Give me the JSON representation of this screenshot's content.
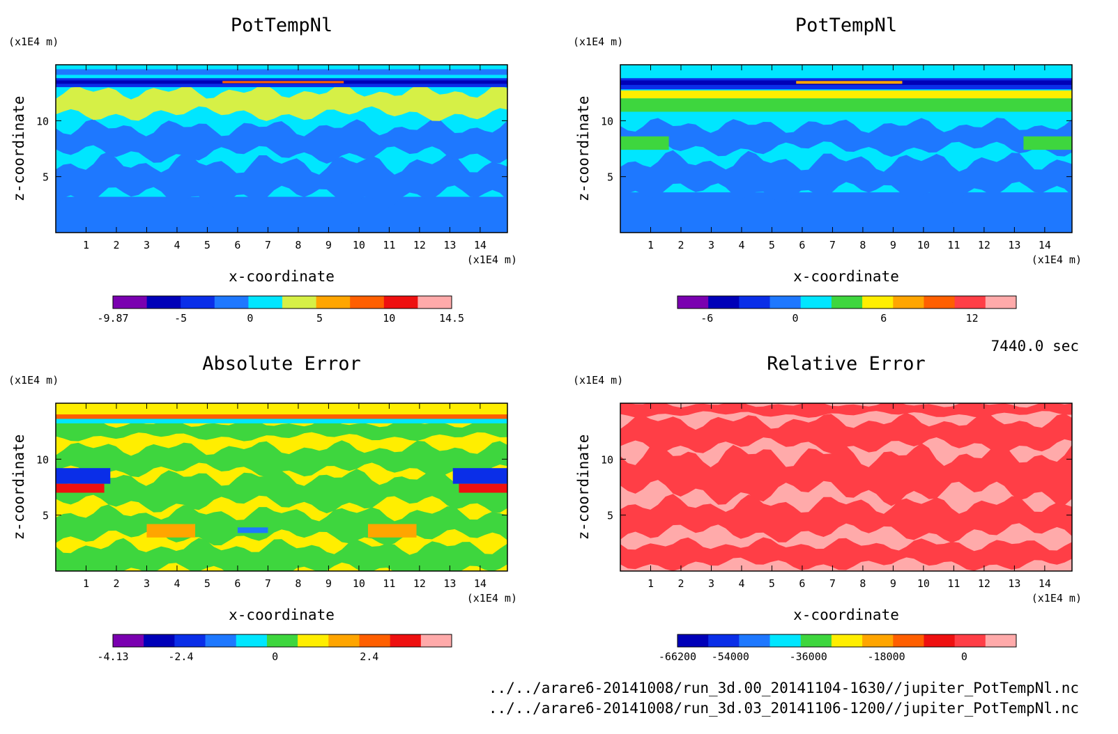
{
  "time_label": "7440.0 sec",
  "files": [
    "../../arare6-20141008/run_3d.00_20141104-1630//jupiter_PotTempNl.nc",
    "../../arare6-20141008/run_3d.03_20141106-1200//jupiter_PotTempNl.nc"
  ],
  "palette": [
    "#7a00b0",
    "#0000b8",
    "#0a2ee8",
    "#1e78ff",
    "#00e6ff",
    "#3ed63e",
    "#ffee00",
    "#ff9f00",
    "#ff5f00",
    "#ee1010",
    "#ff3e46",
    "#ffaaaa"
  ],
  "chart_data": [
    {
      "type": "heatmap",
      "title": "PotTempNl",
      "xlabel": "x-coordinate",
      "ylabel": "z-coordinate",
      "x_unit": "(x1E4 m)",
      "y_unit": "(x1E4 m)",
      "xlim": [
        0,
        14.9
      ],
      "ylim": [
        0,
        15
      ],
      "x_ticks": [
        1,
        2,
        3,
        4,
        5,
        6,
        7,
        8,
        9,
        10,
        11,
        12,
        13,
        14
      ],
      "y_ticks": [
        5,
        10
      ],
      "colorbar": {
        "range": [
          -9.87,
          14.5
        ],
        "colors": [
          "#7a00b0",
          "#0000b8",
          "#0a2ee8",
          "#1e78ff",
          "#00e6ff",
          "#d6f046",
          "#ffa500",
          "#ff5f00",
          "#ee1010",
          "#ffaaaa"
        ],
        "tick_labels": [
          "-9.87",
          "-5",
          "0",
          "5",
          "10",
          "14.5"
        ],
        "tick_values": [
          -9.87,
          -5,
          0,
          5,
          10,
          14.5
        ]
      }
    },
    {
      "type": "heatmap",
      "title": "PotTempNl",
      "xlabel": "x-coordinate",
      "ylabel": "z-coordinate",
      "x_unit": "(x1E4 m)",
      "y_unit": "(x1E4 m)",
      "xlim": [
        0,
        14.9
      ],
      "ylim": [
        0,
        15
      ],
      "x_ticks": [
        1,
        2,
        3,
        4,
        5,
        6,
        7,
        8,
        9,
        10,
        11,
        12,
        13,
        14
      ],
      "y_ticks": [
        5,
        10
      ],
      "colorbar": {
        "range": [
          -8,
          15
        ],
        "colors": [
          "#7a00b0",
          "#0000b8",
          "#0a2ee8",
          "#1e78ff",
          "#00e6ff",
          "#3ed63e",
          "#ffee00",
          "#ffa500",
          "#ff5f00",
          "#ff3e46",
          "#ffaaaa"
        ],
        "tick_labels": [
          "-6",
          "0",
          "6",
          "12"
        ],
        "tick_values": [
          -6,
          0,
          6,
          12
        ]
      }
    },
    {
      "type": "heatmap",
      "title": "Absolute Error",
      "xlabel": "x-coordinate",
      "ylabel": "z-coordinate",
      "x_unit": "(x1E4 m)",
      "y_unit": "(x1E4 m)",
      "xlim": [
        0,
        14.9
      ],
      "ylim": [
        0,
        15
      ],
      "x_ticks": [
        1,
        2,
        3,
        4,
        5,
        6,
        7,
        8,
        9,
        10,
        11,
        12,
        13,
        14
      ],
      "y_ticks": [
        5,
        10
      ],
      "colorbar": {
        "range": [
          -4.13,
          4.5
        ],
        "colors": [
          "#7a00b0",
          "#0000b8",
          "#0a2ee8",
          "#1e78ff",
          "#00e6ff",
          "#3ed63e",
          "#ffee00",
          "#ffa500",
          "#ff5f00",
          "#ee1010",
          "#ffaaaa"
        ],
        "tick_labels": [
          "-4.13",
          "-2.4",
          "0",
          "2.4"
        ],
        "tick_values": [
          -4.13,
          -2.4,
          0,
          2.4
        ]
      }
    },
    {
      "type": "heatmap",
      "title": "Relative Error",
      "xlabel": "x-coordinate",
      "ylabel": "z-coordinate",
      "x_unit": "(x1E4 m)",
      "y_unit": "(x1E4 m)",
      "xlim": [
        0,
        14.9
      ],
      "ylim": [
        0,
        15
      ],
      "x_ticks": [
        1,
        2,
        3,
        4,
        5,
        6,
        7,
        8,
        9,
        10,
        11,
        12,
        13,
        14
      ],
      "y_ticks": [
        5,
        10
      ],
      "colorbar": {
        "range": [
          -66200,
          12000
        ],
        "colors": [
          "#0000b8",
          "#0a2ee8",
          "#1e78ff",
          "#00e6ff",
          "#3ed63e",
          "#ffee00",
          "#ffa500",
          "#ff5f00",
          "#ee1010",
          "#ff3e46",
          "#ffaaaa"
        ],
        "tick_labels": [
          "-66200",
          "-54000",
          "-36000",
          "-18000",
          "0"
        ],
        "tick_values": [
          -66200,
          -54000,
          -36000,
          -18000,
          0
        ]
      }
    }
  ]
}
